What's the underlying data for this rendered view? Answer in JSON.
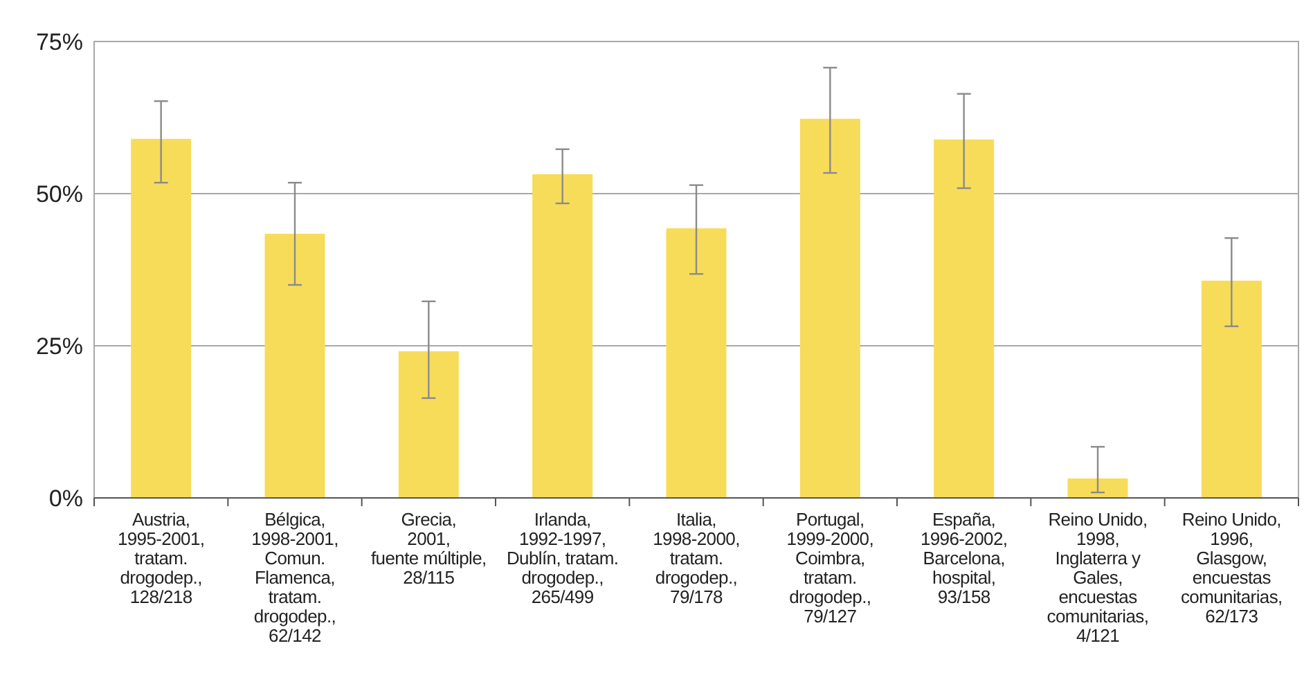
{
  "chart_data": {
    "type": "bar",
    "categories": [
      "Austria,\n1995-2001,\ntratam.\ndrogodep.,\n128/218",
      "Bélgica,\n1998-2001,\nComun.\nFlamenca,\ntratam.\ndrogodep.,\n62/142",
      "Grecia,\n2001,\nfuente múltiple,\n28/115",
      "Irlanda,\n1992-1997,\nDublín, tratam.\ndrogodep.,\n265/499",
      "Italia,\n1998-2000,\ntratam.\ndrogodep.,\n79/178",
      "Portugal,\n1999-2000,\nCoimbra,\ntratam.\ndrogodep.,\n79/127",
      "España,\n1996-2002,\nBarcelona,\nhospital,\n93/158",
      "Reino Unido,\n1998,\nInglaterra y\nGales,\nencuestas\ncomunitarias,\n4/121",
      "Reino Unido,\n1996,\nGlasgow,\nencuestas\ncomunitarias,\n62/173"
    ],
    "values": [
      59,
      43.4,
      24.1,
      53.2,
      44.3,
      62.3,
      58.9,
      3.2,
      35.7
    ],
    "errors": [
      [
        51.8,
        65.2
      ],
      [
        35,
        51.8
      ],
      [
        16.4,
        32.3
      ],
      [
        48.4,
        57.3
      ],
      [
        36.8,
        51.4
      ],
      [
        53.4,
        70.7
      ],
      [
        50.9,
        66.4
      ],
      [
        0.9,
        8.4
      ],
      [
        28.2,
        42.7
      ]
    ],
    "color": "#f7dc5a",
    "ylim": [
      0,
      75
    ],
    "yticks": [
      {
        "value": 0,
        "label": "0%"
      },
      {
        "value": 25,
        "label": "25%"
      },
      {
        "value": 50,
        "label": "50%"
      },
      {
        "value": 75,
        "label": "75%"
      }
    ],
    "grid": "y"
  }
}
